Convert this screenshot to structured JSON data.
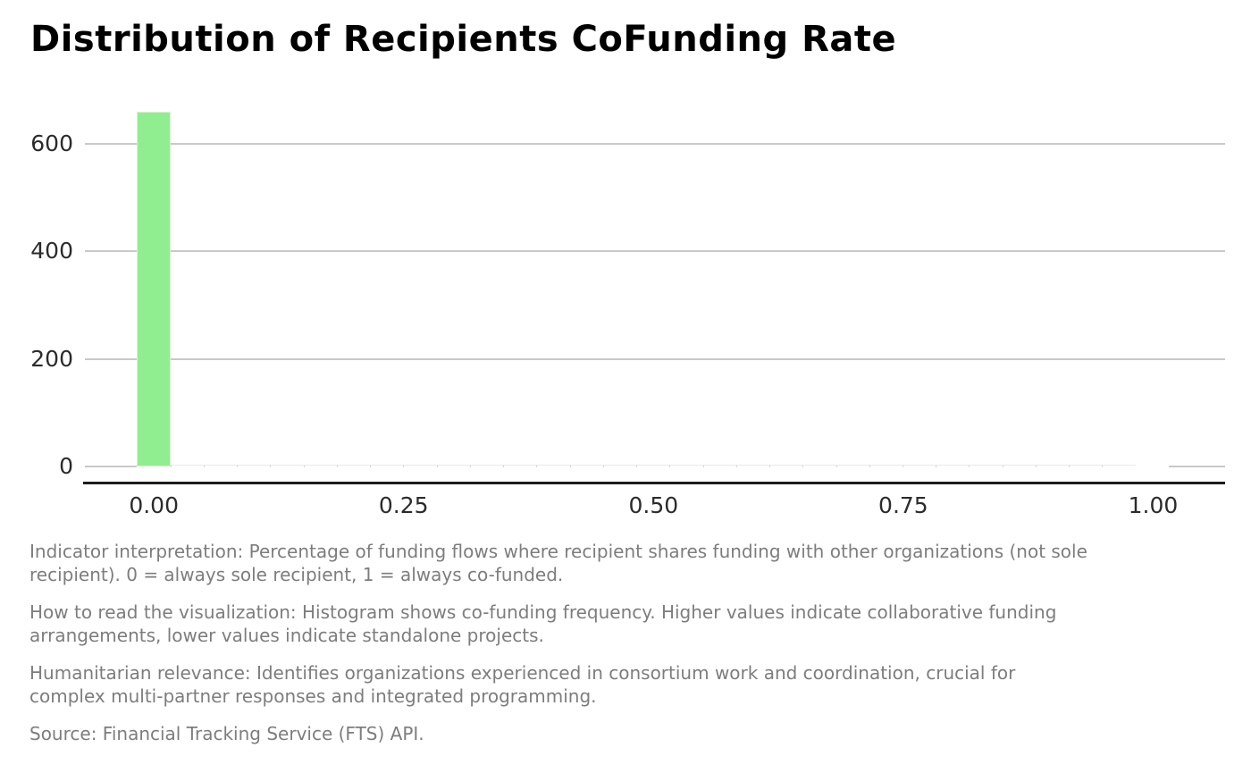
{
  "title": "Distribution of Recipients CoFunding Rate",
  "chart_data": {
    "type": "bar",
    "subtype": "histogram",
    "title": "Distribution of Recipients CoFunding Rate",
    "xlabel": "",
    "ylabel": "",
    "bins_start": -0.0167,
    "bin_width": 0.0333,
    "bin_counts": [
      660,
      0,
      0,
      0,
      0,
      0,
      0,
      0,
      0,
      0,
      0,
      0,
      0,
      0,
      0,
      0,
      0,
      0,
      0,
      0,
      0,
      0,
      0,
      0,
      0,
      0,
      0,
      0,
      0,
      0
    ],
    "x_ticks": [
      {
        "v": 0.0,
        "label": "0.00"
      },
      {
        "v": 0.25,
        "label": "0.25"
      },
      {
        "v": 0.5,
        "label": "0.50"
      },
      {
        "v": 0.75,
        "label": "0.75"
      },
      {
        "v": 1.0,
        "label": "1.00"
      }
    ],
    "y_ticks": [
      {
        "v": 0,
        "label": "0"
      },
      {
        "v": 200,
        "label": "200"
      },
      {
        "v": 400,
        "label": "400"
      },
      {
        "v": 600,
        "label": "600"
      }
    ],
    "xlim": [
      -0.069,
      1.072
    ],
    "ylim": [
      0,
      700
    ],
    "grid": "horizontal",
    "legend": "none",
    "bar_color": "#90EE90"
  },
  "colors": {
    "bar": "#90EE90",
    "bar_edge": "#d9f2d0",
    "grid": "#c9c9c9",
    "axis_line": "#1c1c1c",
    "tick_text": "#2b2b2b",
    "note_text": "#7d7d7d",
    "title_text": "#000000",
    "background": "#ffffff"
  },
  "footer": {
    "notes": [
      "Indicator interpretation: Percentage of funding flows where recipient shares funding with other organizations (not sole\nrecipient). 0 = always sole recipient, 1 = always co-funded.",
      "How to read the visualization: Histogram shows co-funding frequency. Higher values indicate collaborative funding\narrangements, lower values indicate standalone projects.",
      "Humanitarian relevance: Identifies organizations experienced in consortium work and coordination, crucial for\ncomplex multi-partner responses and integrated programming.",
      "Source: Financial Tracking Service (FTS) API."
    ]
  }
}
